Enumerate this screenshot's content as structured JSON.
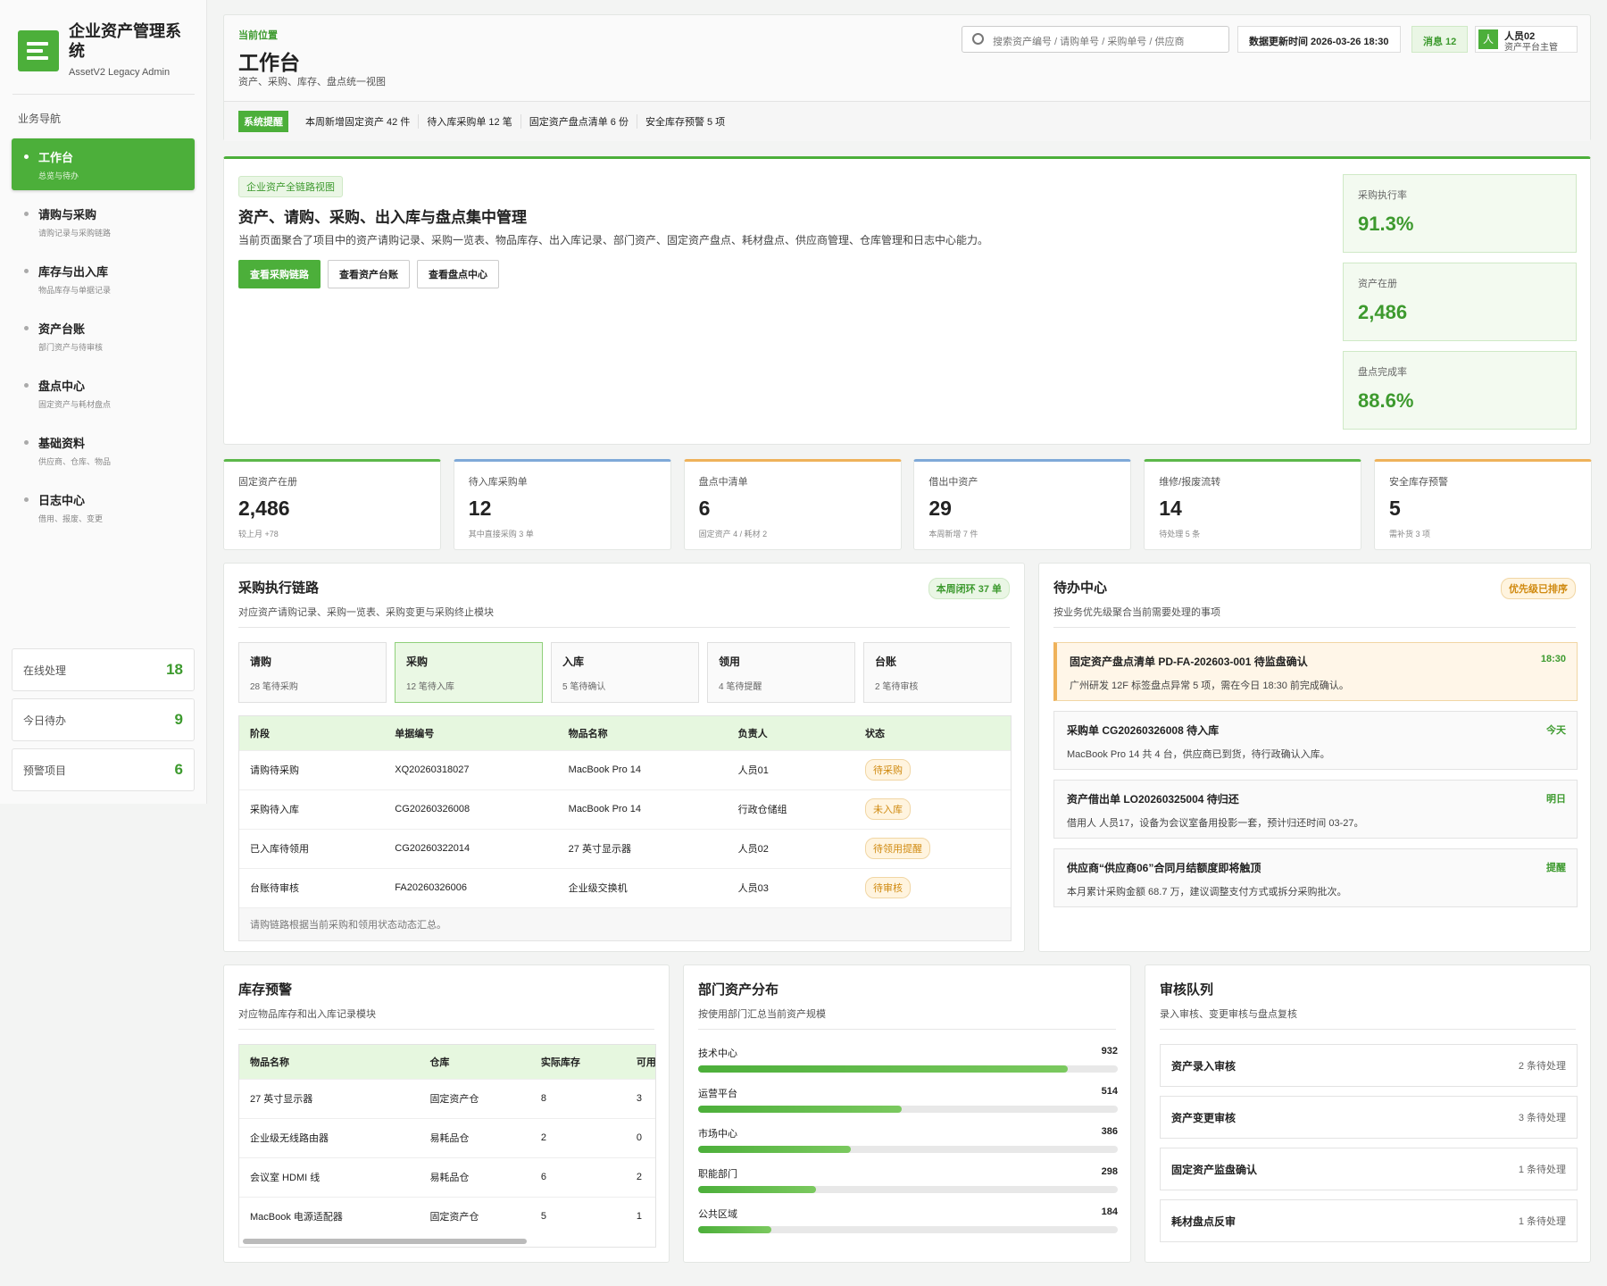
{
  "sidebar": {
    "title": "企业资产管理系统",
    "subtitle": "AssetV2 Legacy Admin",
    "nav_heading": "业务导航",
    "nav": [
      {
        "label": "工作台",
        "desc": "总览与待办"
      },
      {
        "label": "请购与采购",
        "desc": "请购记录与采购链路"
      },
      {
        "label": "库存与出入库",
        "desc": "物品库存与单据记录"
      },
      {
        "label": "资产台账",
        "desc": "部门资产与待审核"
      },
      {
        "label": "盘点中心",
        "desc": "固定资产与耗材盘点"
      },
      {
        "label": "基础资料",
        "desc": "供应商、仓库、物品"
      },
      {
        "label": "日志中心",
        "desc": "借用、报废、变更"
      }
    ],
    "stats": [
      {
        "label": "在线处理",
        "value": 18
      },
      {
        "label": "今日待办",
        "value": 9
      },
      {
        "label": "预警项目",
        "value": 6
      }
    ]
  },
  "header": {
    "breadcrumb": "当前位置",
    "title": "工作台",
    "subtitle": "资产、采购、库存、盘点统一视图",
    "search_placeholder": "搜索资产编号 / 请购单号 / 采购单号 / 供应商",
    "update_time": "数据更新时间 2026-03-26 18:30",
    "messages": "消息 12",
    "avatar": "人",
    "user_name": "人员02",
    "user_role": "资产平台主管"
  },
  "notice": {
    "tag": "系统提醒",
    "items": [
      "本周新增固定资产 42 件",
      "待入库采购单 12 笔",
      "固定资产盘点清单 6 份",
      "安全库存预警 5 项"
    ]
  },
  "hero": {
    "tag": "企业资产全链路视图",
    "title": "资产、请购、采购、出入库与盘点集中管理",
    "desc": "当前页面聚合了项目中的资产请购记录、采购一览表、物品库存、出入库记录、部门资产、固定资产盘点、耗材盘点、供应商管理、仓库管理和日志中心能力。",
    "buttons": [
      "查看采购链路",
      "查看资产台账",
      "查看盘点中心"
    ],
    "metrics": [
      {
        "label": "采购执行率",
        "value": "91.3%"
      },
      {
        "label": "资产在册",
        "value": "2,486"
      },
      {
        "label": "盘点完成率",
        "value": "88.6%"
      }
    ]
  },
  "kpis": [
    {
      "label": "固定资产在册",
      "value": "2,486",
      "note": "较上月 +78",
      "accent": "#5cb84a"
    },
    {
      "label": "待入库采购单",
      "value": 12,
      "note": "其中直接采购 3 单",
      "accent": "#7fa9d8"
    },
    {
      "label": "盘点中清单",
      "value": 6,
      "note": "固定资产 4 / 耗材 2",
      "accent": "#efb25a"
    },
    {
      "label": "借出中资产",
      "value": 29,
      "note": "本周新增 7 件",
      "accent": "#7fa9d8"
    },
    {
      "label": "维修/报废流转",
      "value": 14,
      "note": "待处理 5 条",
      "accent": "#5cb84a"
    },
    {
      "label": "安全库存预警",
      "value": 5,
      "note": "需补货 3 项",
      "accent": "#efb25a"
    }
  ],
  "purchase": {
    "title": "采购执行链路",
    "subtitle": "对应资产请购记录、采购一览表、采购变更与采购终止模块",
    "badge": "本周闭环 37 单",
    "steps": [
      {
        "name": "请购",
        "desc": "28 笔待采购"
      },
      {
        "name": "采购",
        "desc": "12 笔待入库",
        "active": true
      },
      {
        "name": "入库",
        "desc": "5 笔待确认"
      },
      {
        "name": "领用",
        "desc": "4 笔待提醒"
      },
      {
        "name": "台账",
        "desc": "2 笔待审核"
      }
    ],
    "columns": [
      "阶段",
      "单据编号",
      "物品名称",
      "负责人",
      "状态"
    ],
    "rows": [
      [
        "请购待采购",
        "XQ20260318027",
        "MacBook Pro 14",
        "人员01",
        "待采购"
      ],
      [
        "采购待入库",
        "CG20260326008",
        "MacBook Pro 14",
        "行政仓储组",
        "未入库"
      ],
      [
        "已入库待领用",
        "CG20260322014",
        "27 英寸显示器",
        "人员02",
        "待领用提醒"
      ],
      [
        "台账待审核",
        "FA20260326006",
        "企业级交换机",
        "人员03",
        "待审核"
      ]
    ],
    "note": "请购链路根据当前采购和领用状态动态汇总。"
  },
  "todo": {
    "title": "待办中心",
    "subtitle": "按业务优先级聚合当前需要处理的事项",
    "badge": "优先级已排序",
    "items": [
      {
        "title": "固定资产盘点清单 PD-FA-202603-001 待监盘确认",
        "time": "18:30",
        "desc": "广州研发 12F 标签盘点异常 5 项，需在今日 18:30 前完成确认。",
        "highlight": true
      },
      {
        "title": "采购单 CG20260326008 待入库",
        "time": "今天",
        "desc": "MacBook Pro 14 共 4 台，供应商已到货，待行政确认入库。"
      },
      {
        "title": "资产借出单 LO20260325004 待归还",
        "time": "明日",
        "desc": "借用人 人员17，设备为会议室备用投影一套，预计归还时间 03-27。"
      },
      {
        "title": "供应商“供应商06”合同月结额度即将触顶",
        "time": "提醒",
        "desc": "本月累计采购金额 68.7 万，建议调整支付方式或拆分采购批次。"
      }
    ]
  },
  "inventory": {
    "title": "库存预警",
    "subtitle": "对应物品库存和出入库记录模块",
    "columns": [
      "物品名称",
      "仓库",
      "实际库存",
      "可用库存"
    ],
    "rows": [
      [
        "27 英寸显示器",
        "固定资产仓",
        8,
        3
      ],
      [
        "企业级无线路由器",
        "易耗品仓",
        2,
        0
      ],
      [
        "会议室 HDMI 线",
        "易耗品仓",
        6,
        2
      ],
      [
        "MacBook 电源适配器",
        "固定资产仓",
        5,
        1
      ]
    ]
  },
  "departments": {
    "title": "部门资产分布",
    "subtitle": "按使用部门汇总当前资产规模",
    "items": [
      {
        "name": "技术中心",
        "value": 932
      },
      {
        "name": "运营平台",
        "value": 514
      },
      {
        "name": "市场中心",
        "value": 386
      },
      {
        "name": "职能部门",
        "value": 298
      },
      {
        "name": "公共区域",
        "value": 184
      }
    ]
  },
  "reviews": {
    "title": "审核队列",
    "subtitle": "录入审核、变更审核与盘点复核",
    "items": [
      {
        "name": "资产录入审核",
        "count": "2 条待处理"
      },
      {
        "name": "资产变更审核",
        "count": "3 条待处理"
      },
      {
        "name": "固定资产监盘确认",
        "count": "1 条待处理"
      },
      {
        "name": "耗材盘点反审",
        "count": "1 条待处理"
      }
    ]
  }
}
